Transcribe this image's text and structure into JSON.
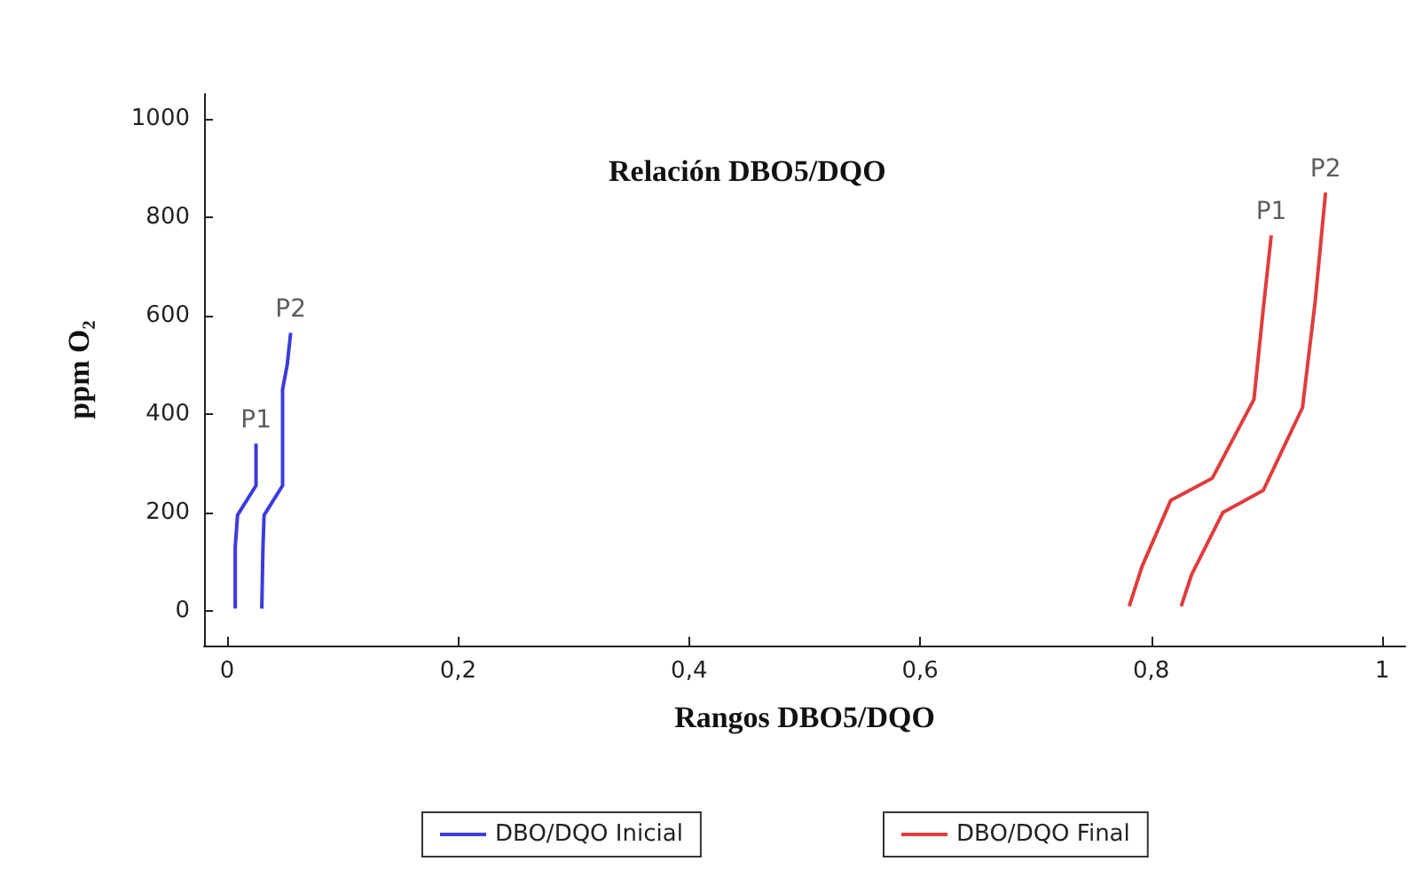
{
  "chart_data": {
    "type": "line",
    "title": "Relación DBO5/DQO",
    "xlabel": "Rangos DBO5/DQO",
    "ylabel": "ppm O₂",
    "xlim": [
      -0.02,
      1.02
    ],
    "ylim": [
      -70,
      1050
    ],
    "xticks": [
      {
        "value": 0,
        "label": "0"
      },
      {
        "value": 0.2,
        "label": "0,2"
      },
      {
        "value": 0.4,
        "label": "0,4"
      },
      {
        "value": 0.6,
        "label": "0,6"
      },
      {
        "value": 0.8,
        "label": "0,8"
      },
      {
        "value": 1,
        "label": "1"
      }
    ],
    "yticks": [
      0,
      200,
      400,
      600,
      800,
      1000
    ],
    "legend": "bottom",
    "grid": false,
    "marker": "none",
    "line_style": "solid",
    "series": [
      {
        "name": "DBO/DQO Inicial",
        "color": "#3b3bdc",
        "x": [
          0.007,
          0.007,
          0.009,
          0.025,
          0.025
        ],
        "values": [
          5,
          130,
          195,
          255,
          340
        ]
      },
      {
        "color": "#3b3bdc",
        "x": [
          0.03,
          0.031,
          0.032,
          0.048,
          0.048,
          0.052,
          0.055
        ],
        "values": [
          5,
          130,
          195,
          255,
          450,
          500,
          565
        ]
      },
      {
        "name": "DBO/DQO Final",
        "color": "#e03c3c",
        "x": [
          0.781,
          0.792,
          0.817,
          0.853,
          0.889,
          0.897,
          0.904
        ],
        "values": [
          10,
          90,
          225,
          270,
          430,
          612,
          763
        ]
      },
      {
        "color": "#e03c3c",
        "x": [
          0.826,
          0.835,
          0.862,
          0.897,
          0.931,
          0.942,
          0.951
        ],
        "values": [
          10,
          74,
          200,
          245,
          413,
          628,
          850
        ]
      }
    ],
    "annotations": [
      {
        "text": "P1",
        "x": 0.025,
        "y": 340
      },
      {
        "text": "P2",
        "x": 0.055,
        "y": 565
      },
      {
        "text": "P1",
        "x": 0.904,
        "y": 763
      },
      {
        "text": "P2",
        "x": 0.951,
        "y": 850
      }
    ]
  }
}
